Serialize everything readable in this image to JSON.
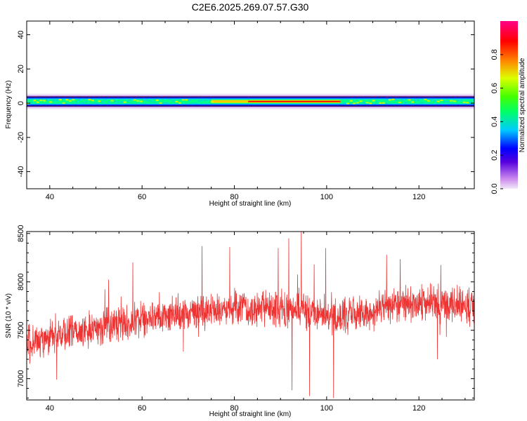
{
  "figure_title": "C2E6.2025.269.07.57.G30",
  "colors": {
    "snr_line": "#ee3333",
    "frame": "#000000",
    "spectrogram_background": "#ffffff"
  },
  "chart_data": [
    {
      "type": "heatmap",
      "name": "spectrogram",
      "xlabel": "Height of straight line (km)",
      "ylabel": "Frequency (Hz)",
      "xlim": [
        35,
        132
      ],
      "ylim": [
        -50,
        48
      ],
      "xticks": [
        40,
        60,
        80,
        100,
        120
      ],
      "yticks": [
        40,
        20,
        0,
        -20,
        -40
      ],
      "band": {
        "center_hz": 1,
        "core_half_width_hz": 1.5,
        "outer_half_width_hz": 4.5,
        "segments": [
          {
            "x_start": 35,
            "x_end": 50,
            "peak_amplitude": 0.45
          },
          {
            "x_start": 50,
            "x_end": 75,
            "peak_amplitude": 0.55
          },
          {
            "x_start": 75,
            "x_end": 83,
            "peak_amplitude": 0.75
          },
          {
            "x_start": 83,
            "x_end": 103,
            "peak_amplitude": 0.85
          },
          {
            "x_start": 103,
            "x_end": 113,
            "peak_amplitude": 0.45
          },
          {
            "x_start": 113,
            "x_end": 132,
            "peak_amplitude": 0.55
          }
        ]
      },
      "colorbar": {
        "label": "Normalized spectral amplitude",
        "range": [
          0,
          1
        ],
        "ticks": [
          0.0,
          0.2,
          0.4,
          0.6,
          0.8
        ],
        "tick_labels": [
          "0.0",
          "0.2",
          "0.4",
          "0.6",
          "0.8"
        ]
      }
    },
    {
      "type": "line",
      "name": "snr",
      "xlabel": "Height of straight line (km)",
      "ylabel": "SNR (10 * v/v)",
      "xlim": [
        35,
        132
      ],
      "ylim": [
        6780,
        8520
      ],
      "xticks": [
        40,
        60,
        80,
        100,
        120
      ],
      "yticks": [
        7000,
        7500,
        8000,
        8500
      ],
      "trend": [
        {
          "x": 35,
          "y": 7370
        },
        {
          "x": 45,
          "y": 7480
        },
        {
          "x": 55,
          "y": 7570
        },
        {
          "x": 65,
          "y": 7640
        },
        {
          "x": 75,
          "y": 7690
        },
        {
          "x": 85,
          "y": 7730
        },
        {
          "x": 95,
          "y": 7700
        },
        {
          "x": 102,
          "y": 7650
        },
        {
          "x": 108,
          "y": 7680
        },
        {
          "x": 115,
          "y": 7760
        },
        {
          "x": 122,
          "y": 7790
        },
        {
          "x": 132,
          "y": 7740
        }
      ],
      "noise_amplitude": 170,
      "spikes": [
        {
          "x": 89.5,
          "y": 8350
        },
        {
          "x": 91.8,
          "y": 8450
        },
        {
          "x": 92.5,
          "y": 6880
        },
        {
          "x": 94.5,
          "y": 8520
        },
        {
          "x": 96.3,
          "y": 6820
        },
        {
          "x": 99.8,
          "y": 8350
        },
        {
          "x": 101.5,
          "y": 6800
        },
        {
          "x": 41.5,
          "y": 6990
        },
        {
          "x": 58,
          "y": 8200
        },
        {
          "x": 73,
          "y": 8370
        },
        {
          "x": 79,
          "y": 8360
        },
        {
          "x": 113,
          "y": 8280
        },
        {
          "x": 124,
          "y": 7200
        }
      ]
    }
  ]
}
